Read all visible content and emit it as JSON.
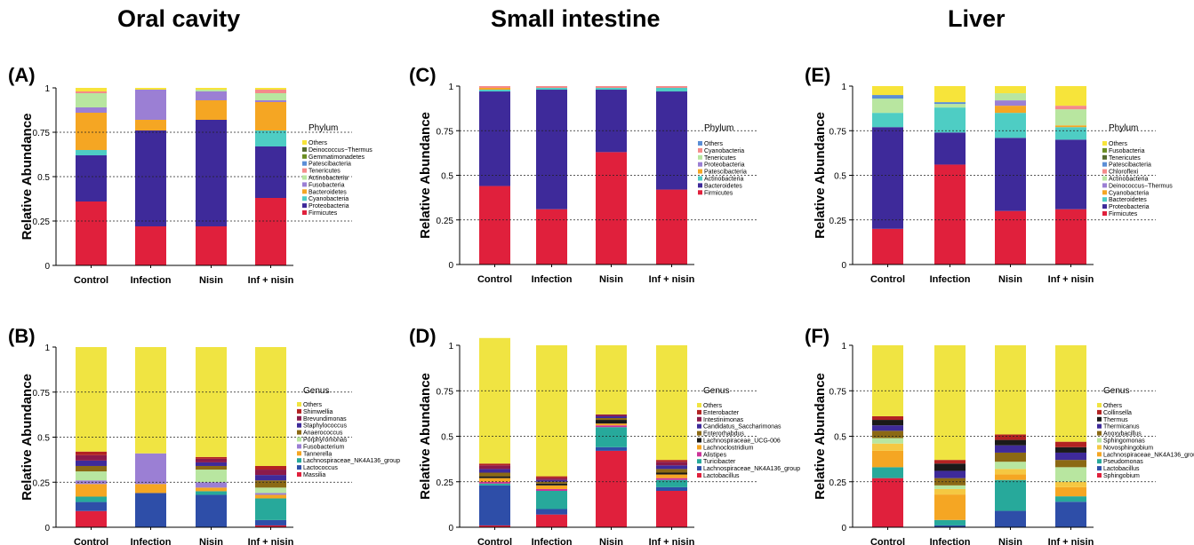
{
  "column_titles": [
    "Oral cavity",
    "Small intestine",
    "Liver"
  ],
  "chart_data": [
    {
      "panel": "(A)",
      "type": "bar",
      "stacked": true,
      "categories": [
        "Control",
        "Infection",
        "Nisin",
        "Inf + nisin"
      ],
      "ylabel": "Relative Abundance",
      "ylim": [
        0,
        1
      ],
      "yticks": [
        "0",
        "0.25",
        "0.5",
        "0.75",
        "1"
      ],
      "legend_title": "Phylum",
      "legend_placement": "right",
      "series": [
        {
          "name": "Firmicutes",
          "color": "#e0203c",
          "values": [
            0.36,
            0.22,
            0.22,
            0.38
          ]
        },
        {
          "name": "Proteobacteria",
          "color": "#3e2a9a",
          "values": [
            0.26,
            0.54,
            0.6,
            0.29
          ]
        },
        {
          "name": "Cyanobacteria",
          "color": "#4ecdc4",
          "values": [
            0.03,
            0.0,
            0.0,
            0.09
          ]
        },
        {
          "name": "Bacteroidetes",
          "color": "#f5a623",
          "values": [
            0.21,
            0.06,
            0.11,
            0.16
          ]
        },
        {
          "name": "Fusobacteria",
          "color": "#9b7fd4",
          "values": [
            0.03,
            0.17,
            0.05,
            0.01
          ]
        },
        {
          "name": "Actinobacteria",
          "color": "#b8e6a0",
          "values": [
            0.08,
            0.0,
            0.01,
            0.04
          ]
        },
        {
          "name": "Tenericutes",
          "color": "#f48a8a",
          "values": [
            0.01,
            0.0,
            0.0,
            0.02
          ]
        },
        {
          "name": "Patescibacteria",
          "color": "#5b8ed6",
          "values": [
            0.0,
            0.0,
            0.0,
            0.0
          ]
        },
        {
          "name": "Gemmatimonadetes",
          "color": "#6b8e23",
          "values": [
            0.0,
            0.0,
            0.0,
            0.0
          ]
        },
        {
          "name": "Deinococcus−Thermus",
          "color": "#556b2f",
          "values": [
            0.0,
            0.0,
            0.0,
            0.0
          ]
        },
        {
          "name": "Others",
          "color": "#f7e43a",
          "values": [
            0.02,
            0.01,
            0.01,
            0.01
          ]
        }
      ]
    },
    {
      "panel": "(B)",
      "type": "bar",
      "stacked": true,
      "categories": [
        "Control",
        "Infection",
        "Nisin",
        "Inf + nisin"
      ],
      "ylabel": "Relative Abundance",
      "ylim": [
        0,
        1
      ],
      "yticks": [
        "0",
        "0.25",
        "0.5",
        "0.75",
        "1"
      ],
      "legend_title": "Genus",
      "legend_placement": "right",
      "series": [
        {
          "name": "Massilia",
          "color": "#e0203c",
          "values": [
            0.09,
            0.0,
            0.0,
            0.01
          ]
        },
        {
          "name": "Lactococcus",
          "color": "#2e4ea8",
          "values": [
            0.05,
            0.19,
            0.18,
            0.03
          ]
        },
        {
          "name": "Lachnospiraceae_NK4A136_group",
          "color": "#27a99b",
          "values": [
            0.03,
            0.0,
            0.02,
            0.12
          ]
        },
        {
          "name": "Tannerella",
          "color": "#f5a623",
          "values": [
            0.07,
            0.05,
            0.02,
            0.02
          ]
        },
        {
          "name": "Fusobacterium",
          "color": "#9b7fd4",
          "values": [
            0.02,
            0.17,
            0.03,
            0.01
          ]
        },
        {
          "name": "Porphyromonas",
          "color": "#b8e6a0",
          "values": [
            0.05,
            0.0,
            0.07,
            0.03
          ]
        },
        {
          "name": "Anaerococcus",
          "color": "#8b6914",
          "values": [
            0.03,
            0.0,
            0.02,
            0.04
          ]
        },
        {
          "name": "Staphylococcus",
          "color": "#3e2a9a",
          "values": [
            0.03,
            0.0,
            0.02,
            0.03
          ]
        },
        {
          "name": "Brevundimonas",
          "color": "#8b1a4a",
          "values": [
            0.03,
            0.0,
            0.02,
            0.03
          ]
        },
        {
          "name": "Shimwellia",
          "color": "#b22222",
          "values": [
            0.02,
            0.0,
            0.01,
            0.02
          ]
        },
        {
          "name": "Others",
          "color": "#f0e442",
          "values": [
            0.58,
            0.59,
            0.61,
            0.66
          ]
        }
      ]
    },
    {
      "panel": "(C)",
      "type": "bar",
      "stacked": true,
      "categories": [
        "Control",
        "Infection",
        "Nisin",
        "Inf + nisin"
      ],
      "ylabel": "Relative Abundance",
      "ylim": [
        0,
        1
      ],
      "yticks": [
        "0",
        "0.25",
        "0.5",
        "0.75",
        "1"
      ],
      "legend_title": "Phylum",
      "legend_placement": "right",
      "series": [
        {
          "name": "Firmicutes",
          "color": "#e0203c",
          "values": [
            0.44,
            0.31,
            0.63,
            0.42
          ]
        },
        {
          "name": "Bacteroidetes",
          "color": "#3e2a9a",
          "values": [
            0.53,
            0.67,
            0.35,
            0.55
          ]
        },
        {
          "name": "Actinobacteria",
          "color": "#4ecdc4",
          "values": [
            0.01,
            0.01,
            0.01,
            0.02
          ]
        },
        {
          "name": "Patescibacteria",
          "color": "#f5a623",
          "values": [
            0.01,
            0.0,
            0.0,
            0.0
          ]
        },
        {
          "name": "Proteobacteria",
          "color": "#9b7fd4",
          "values": [
            0.0,
            0.0,
            0.0,
            0.0
          ]
        },
        {
          "name": "Tenericutes",
          "color": "#b8e6a0",
          "values": [
            0.0,
            0.0,
            0.0,
            0.0
          ]
        },
        {
          "name": "Cyanobacteria",
          "color": "#f48a8a",
          "values": [
            0.01,
            0.01,
            0.01,
            0.01
          ]
        },
        {
          "name": "Others",
          "color": "#5b8ed6",
          "values": [
            0.0,
            0.0,
            0.0,
            0.0
          ]
        }
      ]
    },
    {
      "panel": "(D)",
      "type": "bar",
      "stacked": true,
      "categories": [
        "Control",
        "Infection",
        "Nisin",
        "Inf + nisin"
      ],
      "ylabel": "Relative Abundance",
      "ylim": [
        0,
        1
      ],
      "yticks": [
        "0",
        "0.25",
        "0.5",
        "0.75",
        "1"
      ],
      "legend_title": "Genus",
      "legend_placement": "right",
      "series": [
        {
          "name": "Lactobacillus",
          "color": "#e0203c",
          "values": [
            0.01,
            0.07,
            0.42,
            0.2
          ]
        },
        {
          "name": "Lachnospiraceae_NK4A136_group",
          "color": "#2e4ea8",
          "values": [
            0.22,
            0.03,
            0.02,
            0.02
          ]
        },
        {
          "name": "Turicibacter",
          "color": "#27a99b",
          "values": [
            0.01,
            0.1,
            0.11,
            0.04
          ]
        },
        {
          "name": "Alistipes",
          "color": "#cc3399",
          "values": [
            0.01,
            0.01,
            0.01,
            0.01
          ]
        },
        {
          "name": "Lachnoclostridium",
          "color": "#f5a623",
          "values": [
            0.02,
            0.02,
            0.01,
            0.02
          ]
        },
        {
          "name": "Lachnospiraceae_UCG-006",
          "color": "#1a1a1a",
          "values": [
            0.01,
            0.01,
            0.02,
            0.01
          ]
        },
        {
          "name": "Enterorhabdus",
          "color": "#8b6914",
          "values": [
            0.02,
            0.01,
            0.01,
            0.02
          ]
        },
        {
          "name": "Candidatus_Saccharimonas",
          "color": "#3e2a9a",
          "values": [
            0.02,
            0.01,
            0.01,
            0.02
          ]
        },
        {
          "name": "Intestinimonas",
          "color": "#8b1a4a",
          "values": [
            0.02,
            0.01,
            0.01,
            0.02
          ]
        },
        {
          "name": "Enterobacter",
          "color": "#b22222",
          "values": [
            0.01,
            0.01,
            0.0,
            0.01
          ]
        },
        {
          "name": "Others",
          "color": "#f0e442",
          "values": [
            0.69,
            0.72,
            0.38,
            0.63
          ]
        }
      ]
    },
    {
      "panel": "(E)",
      "type": "bar",
      "stacked": true,
      "categories": [
        "Control",
        "Infection",
        "Nisin",
        "Inf + nisin"
      ],
      "ylabel": "Relative Abundance",
      "ylim": [
        0,
        1
      ],
      "yticks": [
        "0",
        "0.25",
        "0.5",
        "0.75",
        "1"
      ],
      "legend_title": "Phylum",
      "legend_placement": "right",
      "series": [
        {
          "name": "Firmicutes",
          "color": "#e0203c",
          "values": [
            0.2,
            0.56,
            0.3,
            0.31
          ]
        },
        {
          "name": "Proteobacteria",
          "color": "#3e2a9a",
          "values": [
            0.57,
            0.18,
            0.41,
            0.39
          ]
        },
        {
          "name": "Bacteroidetes",
          "color": "#4ecdc4",
          "values": [
            0.08,
            0.14,
            0.14,
            0.07
          ]
        },
        {
          "name": "Cyanobacteria",
          "color": "#f5a623",
          "values": [
            0.0,
            0.0,
            0.04,
            0.01
          ]
        },
        {
          "name": "Deinococcus−Thermus",
          "color": "#9b7fd4",
          "values": [
            0.0,
            0.0,
            0.03,
            0.0
          ]
        },
        {
          "name": "Actinobacteria",
          "color": "#b8e6a0",
          "values": [
            0.08,
            0.02,
            0.04,
            0.09
          ]
        },
        {
          "name": "Chloroflexi",
          "color": "#f48a8a",
          "values": [
            0.0,
            0.0,
            0.0,
            0.02
          ]
        },
        {
          "name": "Patescibacteria",
          "color": "#5b8ed6",
          "values": [
            0.02,
            0.01,
            0.0,
            0.0
          ]
        },
        {
          "name": "Tenericutes",
          "color": "#556b2f",
          "values": [
            0.0,
            0.0,
            0.0,
            0.0
          ]
        },
        {
          "name": "Fusobacteria",
          "color": "#6b8e23",
          "values": [
            0.0,
            0.0,
            0.0,
            0.0
          ]
        },
        {
          "name": "Others",
          "color": "#f7e43a",
          "values": [
            0.05,
            0.09,
            0.04,
            0.11
          ]
        }
      ]
    },
    {
      "panel": "(F)",
      "type": "bar",
      "stacked": true,
      "categories": [
        "Control",
        "Infection",
        "Nisin",
        "Inf + nisin"
      ],
      "ylabel": "Relative Abundance",
      "ylim": [
        0,
        1
      ],
      "yticks": [
        "0",
        "0.25",
        "0.5",
        "0.75",
        "1"
      ],
      "legend_title": "Genus",
      "legend_placement": "right",
      "series": [
        {
          "name": "Sphingobium",
          "color": "#e0203c",
          "values": [
            0.27,
            0.0,
            0.0,
            0.0
          ]
        },
        {
          "name": "Lactobacillus",
          "color": "#2e4ea8",
          "values": [
            0.0,
            0.01,
            0.09,
            0.14
          ]
        },
        {
          "name": "Pseudomonas",
          "color": "#27a99b",
          "values": [
            0.06,
            0.03,
            0.17,
            0.03
          ]
        },
        {
          "name": "Lachnospiraceae_NK4A136_group",
          "color": "#f5a623",
          "values": [
            0.09,
            0.14,
            0.03,
            0.05
          ]
        },
        {
          "name": "Novosphingobium",
          "color": "#f5c842",
          "values": [
            0.04,
            0.03,
            0.03,
            0.03
          ]
        },
        {
          "name": "Sphingomonas",
          "color": "#b8e6a0",
          "values": [
            0.03,
            0.02,
            0.04,
            0.08
          ]
        },
        {
          "name": "Anoxybacillus",
          "color": "#8b6914",
          "values": [
            0.04,
            0.04,
            0.05,
            0.04
          ]
        },
        {
          "name": "Thermicanus",
          "color": "#3e2a9a",
          "values": [
            0.03,
            0.04,
            0.04,
            0.04
          ]
        },
        {
          "name": "Thermus",
          "color": "#1a1a1a",
          "values": [
            0.03,
            0.04,
            0.03,
            0.03
          ]
        },
        {
          "name": "Collinsella",
          "color": "#b22222",
          "values": [
            0.02,
            0.02,
            0.03,
            0.03
          ]
        },
        {
          "name": "Others",
          "color": "#f0e442",
          "values": [
            0.39,
            0.63,
            0.49,
            0.53
          ]
        }
      ]
    }
  ]
}
